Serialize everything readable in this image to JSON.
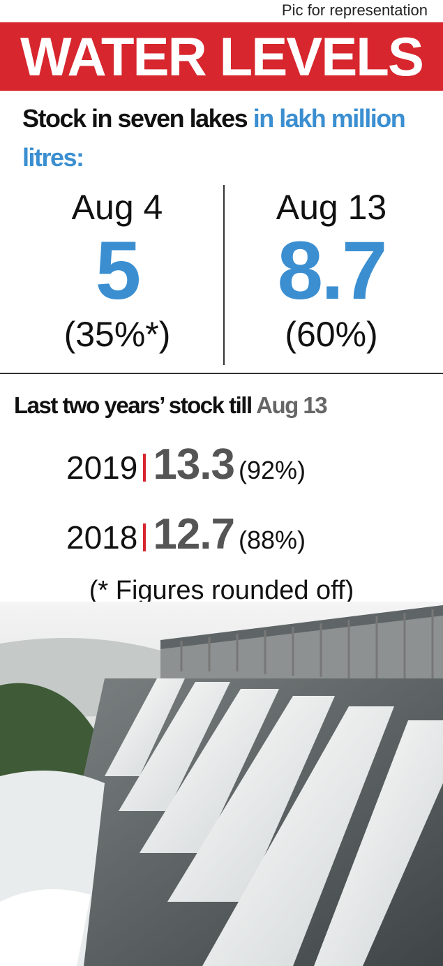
{
  "credit": "Pic for representation",
  "title": "WATER LEVELS",
  "subtitle": {
    "text": "Stock in seven lakes",
    "unit": "in lakh million litres:"
  },
  "current": [
    {
      "date": "Aug 4",
      "value": "5",
      "percent": "(35%*)"
    },
    {
      "date": "Aug 13",
      "value": "8.7",
      "percent": "(60%)"
    }
  ],
  "history": {
    "heading": "Last two years’ stock till",
    "date": "Aug 13",
    "rows": [
      {
        "year": "2019",
        "value": "13.3",
        "percent": "(92%)"
      },
      {
        "year": "2018",
        "value": "12.7",
        "percent": "(88%)"
      }
    ]
  },
  "note": "(* Figures rounded off)"
}
